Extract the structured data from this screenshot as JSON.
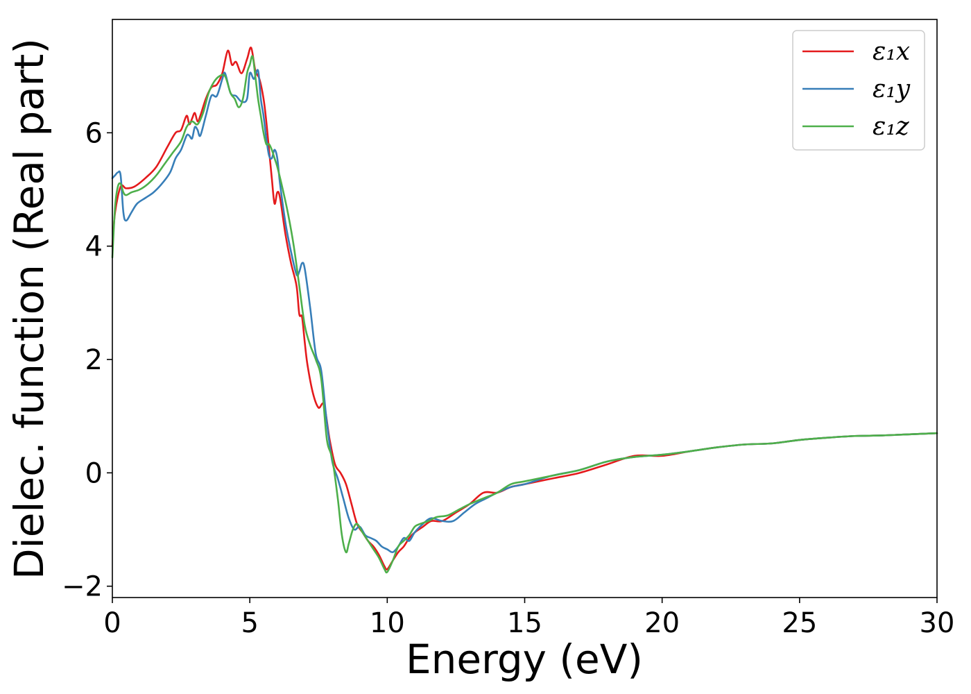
{
  "chart_data": {
    "type": "line",
    "title": "",
    "xlabel": "Energy (eV)",
    "ylabel": "Dielec. function (Real part)",
    "xlim": [
      0,
      30
    ],
    "ylim": [
      -2.2,
      8.0
    ],
    "xticks": [
      0,
      5,
      10,
      15,
      20,
      25,
      30
    ],
    "xtick_labels": [
      "0",
      "5",
      "10",
      "15",
      "20",
      "25",
      "30"
    ],
    "yticks": [
      -2,
      0,
      2,
      4,
      6
    ],
    "ytick_labels": [
      "−2",
      "0",
      "2",
      "4",
      "6"
    ],
    "grid": false,
    "legend_position": "top-right",
    "series": [
      {
        "name": "ε₁x",
        "color": "#e41a1c",
        "x": [
          0,
          0.1,
          0.3,
          0.5,
          0.8,
          1.2,
          1.6,
          2.0,
          2.3,
          2.5,
          2.7,
          2.8,
          2.9,
          3.0,
          3.1,
          3.2,
          3.4,
          3.6,
          3.8,
          4.0,
          4.2,
          4.35,
          4.5,
          4.7,
          4.9,
          5.05,
          5.2,
          5.35,
          5.5,
          5.6,
          5.7,
          5.8,
          5.9,
          6.0,
          6.1,
          6.3,
          6.5,
          6.7,
          6.8,
          6.9,
          7.0,
          7.1,
          7.3,
          7.5,
          7.7,
          7.9,
          8.1,
          8.3,
          8.5,
          8.7,
          8.9,
          9.1,
          9.3,
          9.5,
          9.7,
          9.9,
          10.0,
          10.2,
          10.4,
          10.6,
          10.8,
          11.0,
          11.3,
          11.6,
          12.0,
          12.5,
          13.0,
          13.5,
          14.0,
          14.5,
          15.0,
          16.0,
          17.0,
          18.0,
          19.0,
          20.0,
          21.0,
          22.0,
          23.0,
          24.0,
          25.0,
          26.0,
          27.0,
          28.0,
          29.0,
          30.0
        ],
        "y": [
          4.0,
          4.6,
          5.05,
          5.02,
          5.05,
          5.2,
          5.4,
          5.75,
          6.0,
          6.05,
          6.3,
          6.15,
          6.25,
          6.35,
          6.2,
          6.3,
          6.6,
          6.8,
          6.85,
          7.05,
          7.45,
          7.2,
          7.25,
          7.05,
          7.3,
          7.5,
          7.1,
          6.95,
          6.6,
          6.2,
          5.7,
          5.2,
          4.75,
          4.95,
          4.85,
          4.2,
          3.7,
          3.3,
          2.8,
          2.75,
          2.3,
          1.9,
          1.4,
          1.15,
          1.2,
          0.6,
          0.15,
          0.0,
          -0.2,
          -0.55,
          -0.9,
          -1.05,
          -1.2,
          -1.3,
          -1.45,
          -1.65,
          -1.7,
          -1.55,
          -1.4,
          -1.3,
          -1.15,
          -1.05,
          -0.95,
          -0.85,
          -0.85,
          -0.7,
          -0.55,
          -0.35,
          -0.35,
          -0.25,
          -0.2,
          -0.1,
          0.0,
          0.15,
          0.3,
          0.3,
          0.38,
          0.45,
          0.5,
          0.52,
          0.58,
          0.62,
          0.65,
          0.66,
          0.68,
          0.7
        ]
      },
      {
        "name": "ε₁y",
        "color": "#377eb8",
        "x": [
          0,
          0.1,
          0.2,
          0.3,
          0.4,
          0.5,
          0.7,
          0.9,
          1.2,
          1.5,
          1.8,
          2.1,
          2.3,
          2.5,
          2.7,
          2.8,
          2.9,
          3.0,
          3.1,
          3.2,
          3.4,
          3.6,
          3.8,
          4.0,
          4.1,
          4.3,
          4.5,
          4.7,
          4.9,
          5.0,
          5.15,
          5.3,
          5.4,
          5.5,
          5.6,
          5.7,
          5.8,
          5.9,
          6.0,
          6.1,
          6.3,
          6.5,
          6.7,
          6.8,
          6.9,
          7.0,
          7.2,
          7.4,
          7.6,
          7.8,
          8.0,
          8.2,
          8.4,
          8.6,
          8.8,
          9.0,
          9.2,
          9.4,
          9.6,
          9.8,
          10.0,
          10.2,
          10.4,
          10.6,
          10.8,
          11.0,
          11.3,
          11.6,
          12.0,
          12.4,
          12.8,
          13.2,
          13.6,
          14.0,
          14.5,
          15.0,
          16.0,
          17.0,
          18.0,
          19.0,
          20.0,
          21.0,
          22.0,
          23.0,
          24.0,
          25.0,
          26.0,
          27.0,
          28.0,
          29.0,
          30.0
        ],
        "y": [
          5.2,
          5.25,
          5.3,
          5.25,
          4.6,
          4.45,
          4.6,
          4.75,
          4.85,
          4.95,
          5.1,
          5.3,
          5.55,
          5.7,
          5.95,
          5.95,
          5.9,
          6.1,
          6.05,
          5.95,
          6.3,
          6.65,
          6.65,
          6.95,
          7.05,
          6.7,
          6.65,
          6.55,
          6.6,
          7.05,
          6.95,
          7.1,
          6.6,
          6.3,
          5.9,
          5.6,
          5.55,
          5.7,
          5.55,
          5.1,
          4.4,
          3.9,
          3.5,
          3.55,
          3.7,
          3.6,
          2.9,
          2.1,
          1.8,
          0.9,
          0.2,
          -0.1,
          -0.45,
          -0.8,
          -1.0,
          -0.95,
          -1.1,
          -1.15,
          -1.2,
          -1.3,
          -1.35,
          -1.4,
          -1.3,
          -1.15,
          -1.2,
          -1.05,
          -0.9,
          -0.8,
          -0.85,
          -0.85,
          -0.7,
          -0.55,
          -0.45,
          -0.35,
          -0.25,
          -0.2,
          -0.05,
          0.05,
          0.2,
          0.28,
          0.32,
          0.38,
          0.45,
          0.5,
          0.52,
          0.58,
          0.62,
          0.65,
          0.66,
          0.68,
          0.7
        ]
      },
      {
        "name": "ε₁z",
        "color": "#4daf4a",
        "x": [
          0,
          0.1,
          0.2,
          0.3,
          0.4,
          0.5,
          0.7,
          1.0,
          1.3,
          1.6,
          1.9,
          2.2,
          2.5,
          2.7,
          2.9,
          3.1,
          3.3,
          3.5,
          3.7,
          3.9,
          4.1,
          4.3,
          4.45,
          4.6,
          4.75,
          4.9,
          5.0,
          5.1,
          5.2,
          5.3,
          5.4,
          5.5,
          5.6,
          5.7,
          5.8,
          5.9,
          6.0,
          6.2,
          6.4,
          6.6,
          6.8,
          7.0,
          7.2,
          7.4,
          7.6,
          7.8,
          8.0,
          8.2,
          8.35,
          8.5,
          8.6,
          8.75,
          8.9,
          9.1,
          9.3,
          9.5,
          9.7,
          9.9,
          10.0,
          10.2,
          10.4,
          10.6,
          10.8,
          11.0,
          11.2,
          11.5,
          11.8,
          12.2,
          12.6,
          13.0,
          13.5,
          14.0,
          14.5,
          15.0,
          16.0,
          17.0,
          18.0,
          19.0,
          20.0,
          21.0,
          22.0,
          23.0,
          24.0,
          25.0,
          26.0,
          27.0,
          28.0,
          29.0,
          30.0
        ],
        "y": [
          3.8,
          4.7,
          5.05,
          5.1,
          4.95,
          4.9,
          4.95,
          5.0,
          5.1,
          5.25,
          5.45,
          5.65,
          5.85,
          6.1,
          6.2,
          6.15,
          6.35,
          6.7,
          6.9,
          7.0,
          7.0,
          6.7,
          6.6,
          6.45,
          6.6,
          7.05,
          7.2,
          7.35,
          7.0,
          6.6,
          6.3,
          6.0,
          5.8,
          5.8,
          5.7,
          5.55,
          5.4,
          5.0,
          4.55,
          4.0,
          3.3,
          2.6,
          2.25,
          2.0,
          1.65,
          0.6,
          0.25,
          -0.45,
          -1.1,
          -1.4,
          -1.25,
          -1.0,
          -0.9,
          -1.05,
          -1.2,
          -1.35,
          -1.5,
          -1.7,
          -1.75,
          -1.55,
          -1.3,
          -1.2,
          -1.1,
          -0.95,
          -0.9,
          -0.85,
          -0.78,
          -0.75,
          -0.65,
          -0.55,
          -0.45,
          -0.35,
          -0.2,
          -0.15,
          -0.05,
          0.05,
          0.2,
          0.28,
          0.32,
          0.38,
          0.45,
          0.5,
          0.52,
          0.58,
          0.62,
          0.65,
          0.66,
          0.68,
          0.7
        ]
      }
    ]
  }
}
